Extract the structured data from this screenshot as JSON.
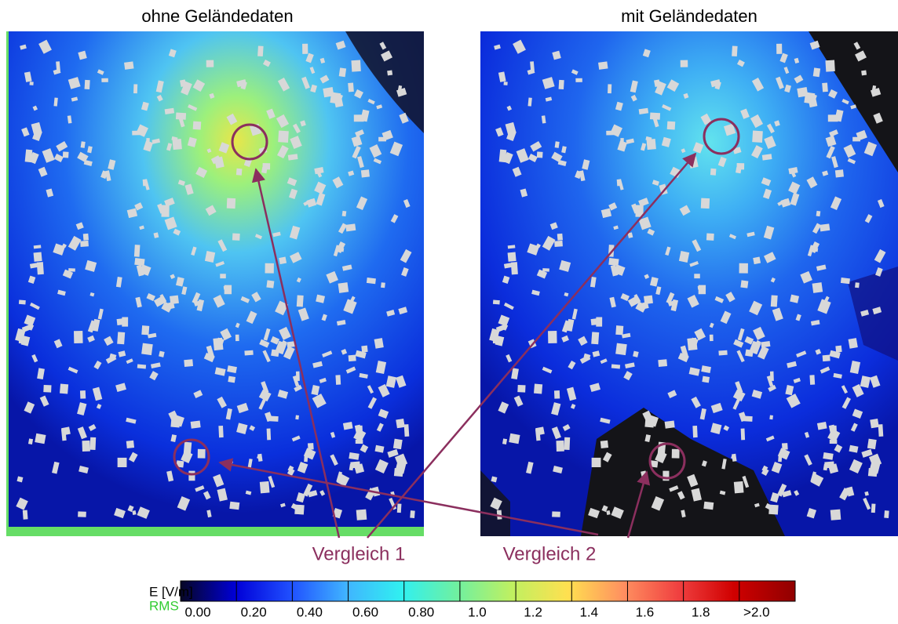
{
  "panels": [
    {
      "title": "ohne Geländedaten"
    },
    {
      "title": "mit Geländedaten"
    }
  ],
  "annotations": [
    "Vergleich 1",
    "Vergleich 2"
  ],
  "colorbar": {
    "label": "E [V/m]",
    "sublabel": "RMS",
    "ticks": [
      "0.00",
      "0.20",
      "0.40",
      "0.60",
      "0.80",
      "1.0",
      "1.2",
      "1.4",
      "1.6",
      "1.8",
      ">2.0"
    ]
  }
}
